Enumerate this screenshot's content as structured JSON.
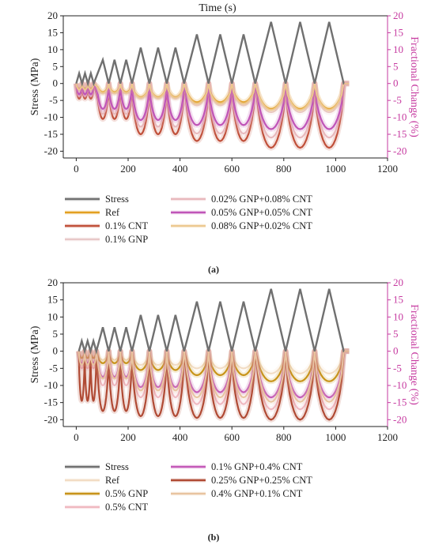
{
  "chart_data": [
    {
      "type": "line",
      "panel_label": "(a)",
      "title": "Time (s)",
      "xlabel": "",
      "ylabel": "Stress (MPa)",
      "ylabel_right": "Fractional Change (%)",
      "xlim": [
        -50,
        1200
      ],
      "ylim": [
        -22,
        20
      ],
      "y2lim": [
        -22,
        20
      ],
      "xticks": [
        0,
        200,
        400,
        600,
        800,
        1000,
        1200
      ],
      "yticks": [
        -20,
        -15,
        -10,
        -5,
        0,
        5,
        10,
        15,
        20
      ],
      "stress": {
        "name": "Stress",
        "color": "#707070",
        "cycles": [
          {
            "start": 0,
            "period": 22.5,
            "peak": 3,
            "count": 3
          },
          {
            "start": 80,
            "period": 45,
            "peak": 7,
            "count": 3
          },
          {
            "start": 215,
            "period": 67,
            "peak": 10.6,
            "count": 3
          },
          {
            "start": 420,
            "period": 90,
            "peak": 14.5,
            "count": 3
          },
          {
            "start": 695,
            "period": 112,
            "peak": 18.2,
            "count": 3
          }
        ],
        "end": 1032
      },
      "series": [
        {
          "name": "Ref",
          "color": "#e3a020",
          "depth": [
            1.5,
            2.5,
            4.0,
            5.5,
            7.5
          ],
          "width": 2.2
        },
        {
          "name": "0.1% CNT",
          "color": "#c0503a",
          "depth": [
            4.5,
            10.5,
            15.0,
            17.0,
            19.0
          ],
          "width": 2.2
        },
        {
          "name": "0.1% GNP",
          "color": "#e8c8c8",
          "depth": [
            2.0,
            3.0,
            4.5,
            6.5,
            8.5
          ],
          "width": 2.0
        },
        {
          "name": "0.02% GNP+0.08% CNT",
          "color": "#e8b8bc",
          "depth": [
            3.8,
            9.0,
            12.8,
            14.8,
            16.0
          ],
          "width": 2.0
        },
        {
          "name": "0.05% GNP+0.05% CNT",
          "color": "#c055b8",
          "depth": [
            3.2,
            7.5,
            10.8,
            12.3,
            13.5
          ],
          "width": 2.2
        },
        {
          "name": "0.08% GNP+0.02% CNT",
          "color": "#ecc890",
          "depth": [
            1.8,
            2.8,
            4.2,
            6.0,
            7.8
          ],
          "width": 2.0
        }
      ],
      "legend_columns": [
        [
          "Stress",
          "Ref",
          "0.1% CNT",
          "0.1% GNP"
        ],
        [
          "0.02% GNP+0.08% CNT",
          "0.05% GNP+0.05% CNT",
          "0.08% GNP+0.02% CNT"
        ]
      ]
    },
    {
      "type": "line",
      "panel_label": "(b)",
      "title": "",
      "xlabel": "",
      "ylabel": "Stress (MPa)",
      "ylabel_right": "Fractional Change (%)",
      "xlim": [
        -50,
        1200
      ],
      "ylim": [
        -22,
        20
      ],
      "y2lim": [
        -22,
        20
      ],
      "xticks": [
        0,
        200,
        400,
        600,
        800,
        1000,
        1200
      ],
      "yticks": [
        -20,
        -15,
        -10,
        -5,
        0,
        5,
        10,
        15,
        20
      ],
      "stress": {
        "name": "Stress",
        "color": "#707070",
        "cycles": [
          {
            "start": 10,
            "period": 22.5,
            "peak": 3,
            "count": 3
          },
          {
            "start": 80,
            "period": 45,
            "peak": 7,
            "count": 3
          },
          {
            "start": 215,
            "period": 67,
            "peak": 10.6,
            "count": 3
          },
          {
            "start": 420,
            "period": 90,
            "peak": 14.5,
            "count": 3
          },
          {
            "start": 695,
            "period": 112,
            "peak": 18.2,
            "count": 3
          }
        ],
        "end": 1032
      },
      "series": [
        {
          "name": "Ref",
          "color": "#f2dcc4",
          "depth": [
            1.5,
            2.5,
            4.0,
            5.0,
            6.5
          ],
          "width": 2.0
        },
        {
          "name": "0.5% GNP",
          "color": "#c8941a",
          "depth": [
            2.0,
            3.5,
            5.5,
            7.0,
            8.8
          ],
          "width": 2.2
        },
        {
          "name": "0.5% CNT",
          "color": "#f0b8c0",
          "depth": [
            5.0,
            10.0,
            13.5,
            15.5,
            17.0
          ],
          "width": 2.0
        },
        {
          "name": "0.1% GNP+0.4% CNT",
          "color": "#c45ab8",
          "depth": [
            3.5,
            7.5,
            10.5,
            12.0,
            13.5
          ],
          "width": 2.2
        },
        {
          "name": "0.25% GNP+0.25% CNT",
          "color": "#b04a34",
          "depth": [
            14.5,
            17.5,
            19.0,
            19.5,
            20.0
          ],
          "width": 2.2
        },
        {
          "name": "0.4% GNP+0.1% CNT",
          "color": "#e8c4a0",
          "depth": [
            4.0,
            8.0,
            11.5,
            13.5,
            14.8
          ],
          "width": 2.0
        }
      ],
      "legend_columns": [
        [
          "Stress",
          "Ref",
          "0.5% GNP",
          "0.5% CNT"
        ],
        [
          "0.1% GNP+0.4% CNT",
          "0.25% GNP+0.25% CNT",
          "0.4% GNP+0.1% CNT"
        ]
      ]
    }
  ]
}
